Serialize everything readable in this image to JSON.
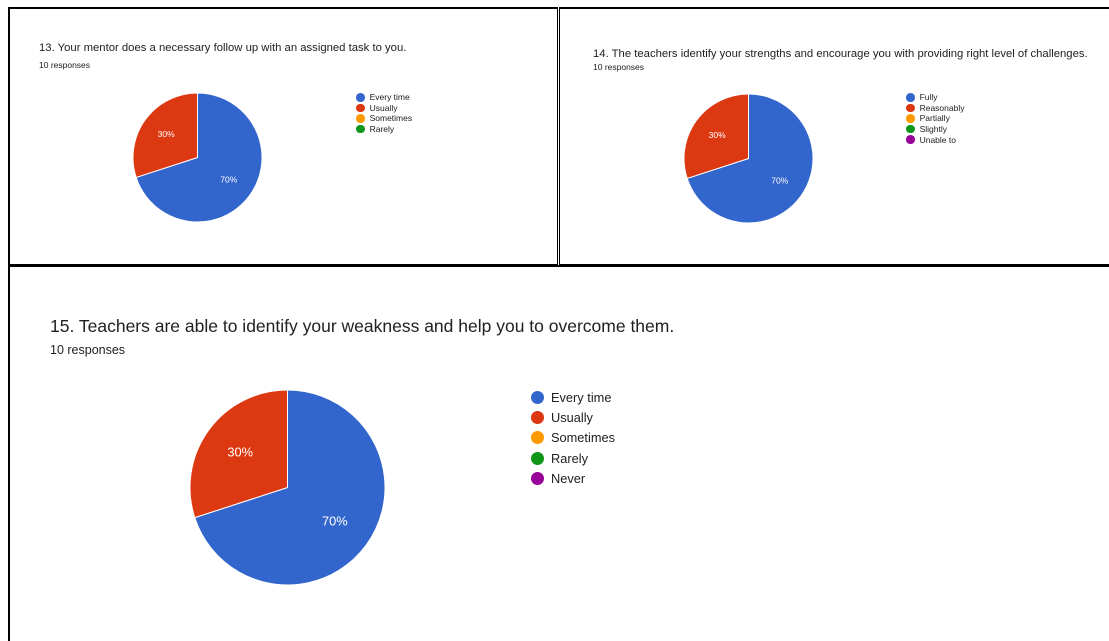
{
  "chart_data": [
    {
      "type": "pie",
      "title": "13. Your mentor does a necessary follow up with an assigned  task to you.",
      "subtitle": "10 responses",
      "legend": [
        "Every time",
        "Usually",
        "Sometimes",
        "Rarely"
      ],
      "values": [
        70,
        30,
        0,
        0
      ],
      "labels": [
        "70%",
        "30%",
        "",
        ""
      ],
      "colors": [
        "#3366cc",
        "#dc3912",
        "#ff9900",
        "#109618"
      ],
      "legend_position": "right"
    },
    {
      "type": "pie",
      "title": "14. The teachers identify your strengths and encourage you with providing right level of challenges.",
      "subtitle": "10 responses",
      "legend": [
        "Fully",
        "Reasonably",
        "Partially",
        "Slightly",
        "Unable to"
      ],
      "values": [
        70,
        30,
        0,
        0,
        0
      ],
      "labels": [
        "70%",
        "30%",
        "",
        "",
        ""
      ],
      "colors": [
        "#3366cc",
        "#dc3912",
        "#ff9900",
        "#109618",
        "#990099"
      ],
      "legend_position": "right"
    },
    {
      "type": "pie",
      "title": "15. Teachers are able to identify your weakness and help you to overcome them.",
      "subtitle": "10 responses",
      "legend": [
        "Every time",
        "Usually",
        "Sometimes",
        "Rarely",
        "Never"
      ],
      "values": [
        70,
        30,
        0,
        0,
        0
      ],
      "labels": [
        "70%",
        "30%",
        "",
        "",
        ""
      ],
      "colors": [
        "#3366cc",
        "#dc3912",
        "#ff9900",
        "#109618",
        "#990099"
      ],
      "legend_position": "right"
    }
  ]
}
